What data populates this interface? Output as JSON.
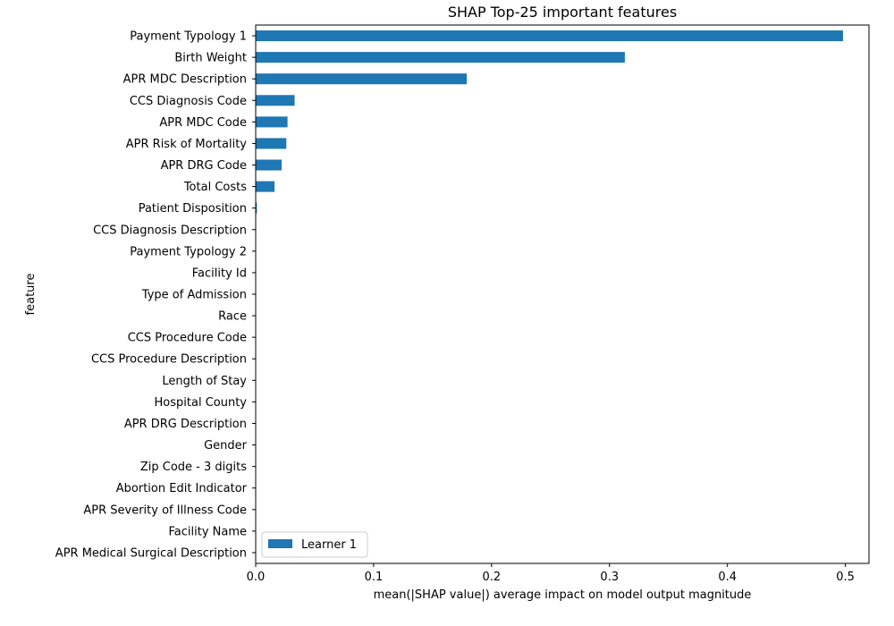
{
  "chart_data": {
    "type": "bar",
    "orientation": "horizontal",
    "title": "SHAP Top-25 important features",
    "xlabel": "mean(|SHAP value|) average impact on model output magnitude",
    "ylabel": "feature",
    "xlim": [
      0,
      0.5
    ],
    "xticks": [
      "0.0",
      "0.1",
      "0.2",
      "0.3",
      "0.4",
      "0.5"
    ],
    "grid": false,
    "legend_position": "lower-left",
    "categories": [
      "Payment Typology 1",
      "Birth Weight",
      "APR MDC Description",
      "CCS Diagnosis Code",
      "APR MDC Code",
      "APR Risk of Mortality",
      "APR DRG Code",
      "Total Costs",
      "Patient Disposition",
      "CCS Diagnosis Description",
      "Payment Typology 2",
      "Facility Id",
      "Type of Admission",
      "Race",
      "CCS Procedure Code",
      "CCS Procedure Description",
      "Length of Stay",
      "Hospital County",
      "APR DRG Description",
      "Gender",
      "Zip Code - 3 digits",
      "Abortion Edit Indicator",
      "APR Severity of Illness Code",
      "Facility Name",
      "APR Medical Surgical Description"
    ],
    "series": [
      {
        "name": "Learner 1",
        "color": "#1f77b4",
        "values": [
          0.498,
          0.313,
          0.179,
          0.033,
          0.027,
          0.026,
          0.022,
          0.016,
          0.001,
          0.0004,
          0.0003,
          0.0003,
          0.0002,
          0.0002,
          0.0002,
          0.0001,
          0.0001,
          0.0001,
          0.0001,
          0.0001,
          0.0001,
          0.0,
          0.0,
          0.0,
          0.0
        ]
      }
    ]
  }
}
